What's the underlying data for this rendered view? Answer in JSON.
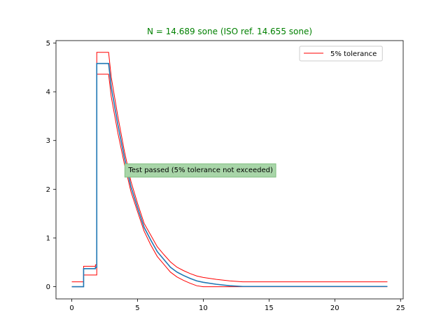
{
  "chart_data": {
    "type": "line",
    "title": "N = 14.689 sone (ISO ref. 14.655 sone)",
    "title_color": "#008000",
    "xlabel": "",
    "ylabel": "",
    "xlim": [
      -1.2,
      25.2
    ],
    "ylim": [
      -0.25,
      5.05
    ],
    "xticks": [
      0,
      5,
      10,
      15,
      20,
      25
    ],
    "yticks": [
      0,
      1,
      2,
      3,
      4,
      5
    ],
    "grid": false,
    "legend": {
      "position": "upper right",
      "entries": [
        {
          "label": "5% tolerance",
          "color": "#ff0000"
        }
      ]
    },
    "annotation": {
      "text": "Test passed (5% tolerance not exceeded)",
      "x": 4.3,
      "y": 2.4,
      "background": "#a8d5a8",
      "border": "#7fbf7f"
    },
    "series": [
      {
        "role": "specific loudness",
        "color": "#1f77b4",
        "x": [
          0,
          0.9,
          0.9,
          1.8,
          1.8,
          1.9,
          1.9,
          2.8,
          3.0,
          3.5,
          4.0,
          4.5,
          5.0,
          5.5,
          6.0,
          6.5,
          7.0,
          7.5,
          8.0,
          8.5,
          9.0,
          9.5,
          10.0,
          11.0,
          12.0,
          13.0,
          24.0
        ],
        "y": [
          0,
          0,
          0.37,
          0.37,
          0.4,
          0.4,
          4.58,
          4.58,
          4.1,
          3.33,
          2.65,
          2.05,
          1.62,
          1.22,
          0.96,
          0.72,
          0.56,
          0.4,
          0.3,
          0.23,
          0.17,
          0.12,
          0.09,
          0.05,
          0.02,
          0.005,
          0.005
        ]
      },
      {
        "role": "upper tolerance",
        "color": "#ff0000",
        "legend": true,
        "x": [
          0,
          0.9,
          0.9,
          1.8,
          1.8,
          1.9,
          1.9,
          2.8,
          3.0,
          3.5,
          4.0,
          4.5,
          5.0,
          5.5,
          6.0,
          6.5,
          7.0,
          7.5,
          8.0,
          8.5,
          9.0,
          9.5,
          10.0,
          11.0,
          12.0,
          13.0,
          24.0
        ],
        "y": [
          0.1,
          0.1,
          0.42,
          0.42,
          0.45,
          0.45,
          4.81,
          4.81,
          4.3,
          3.5,
          2.78,
          2.16,
          1.71,
          1.3,
          1.06,
          0.82,
          0.66,
          0.51,
          0.4,
          0.33,
          0.27,
          0.22,
          0.19,
          0.15,
          0.12,
          0.1,
          0.1
        ]
      },
      {
        "role": "lower tolerance",
        "color": "#ff0000",
        "x": [
          0,
          0.9,
          0.9,
          1.8,
          1.8,
          1.9,
          1.9,
          2.8,
          3.0,
          3.5,
          4.0,
          4.5,
          5.0,
          5.5,
          6.0,
          6.5,
          7.0,
          7.5,
          8.0,
          8.5,
          9.0,
          9.5,
          10.0,
          11.0,
          12.0,
          13.0,
          24.0
        ],
        "y": [
          0,
          0,
          0.24,
          0.24,
          0.24,
          0.24,
          4.36,
          4.36,
          3.9,
          3.16,
          2.52,
          1.95,
          1.54,
          1.14,
          0.86,
          0.62,
          0.46,
          0.3,
          0.2,
          0.13,
          0.07,
          0.02,
          0,
          0,
          0,
          0,
          0
        ]
      }
    ]
  }
}
